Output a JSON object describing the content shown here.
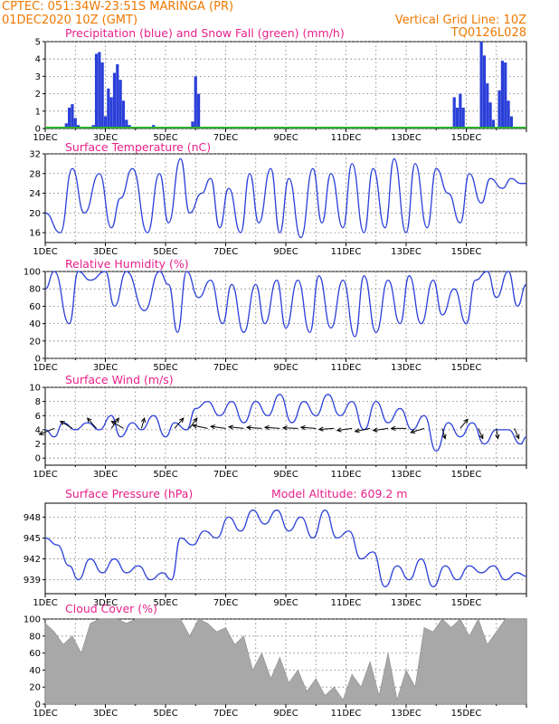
{
  "header": {
    "line1": "CPTEC:   051:34W-23:51S   MARINGA (PR)",
    "line2": "01DEC2020 10Z (GMT)",
    "grid_note": "Vertical Grid Line: 10Z",
    "code": "TQ0126L028"
  },
  "x_ticks": [
    "1DEC",
    "3DEC",
    "5DEC",
    "7DEC",
    "9DEC",
    "11DEC",
    "13DEC",
    "15DEC"
  ],
  "colors": {
    "title": "#e8208a",
    "header": "#f07800",
    "line": "#2a3fd8",
    "snow": "#2ab02a",
    "cloud": "#a8a8a8"
  },
  "chart_data": [
    {
      "type": "bar",
      "title": "Precipitation (blue) and Snow Fall (green) (mm/h)",
      "ylim": [
        0,
        5
      ],
      "yticks": [
        0,
        1,
        2,
        3,
        4,
        5
      ],
      "x_unit": "days since 01DEC 10Z",
      "series": [
        {
          "name": "Precipitation",
          "color": "#2a3fd8",
          "x": [
            0.7,
            0.8,
            0.9,
            1.0,
            1.1,
            1.6,
            1.7,
            1.8,
            1.9,
            2.0,
            2.1,
            2.2,
            2.3,
            2.4,
            2.5,
            2.6,
            2.7,
            2.8,
            3.5,
            3.6,
            3.7,
            4.9,
            5.0,
            5.1,
            6.7,
            11.1,
            11.3,
            12.4,
            12.6,
            13.6,
            13.7,
            13.8,
            13.9,
            14.5,
            14.6,
            14.7,
            14.8,
            14.9,
            15.1,
            15.2,
            15.3,
            15.4,
            15.5
          ],
          "values": [
            0.3,
            1.2,
            1.4,
            0.6,
            0.2,
            0.2,
            4.3,
            4.4,
            3.8,
            0.7,
            2.3,
            1.8,
            3.2,
            3.7,
            2.8,
            1.6,
            0.5,
            0.2,
            0.1,
            0.2,
            0.1,
            0.4,
            3.0,
            2.0,
            0.1,
            0.1,
            0.1,
            0.1,
            0.1,
            1.8,
            1.2,
            2.0,
            1.2,
            5.0,
            4.2,
            2.6,
            1.5,
            0.5,
            2.2,
            3.9,
            3.8,
            1.6,
            0.7
          ]
        },
        {
          "name": "Snow Fall",
          "color": "#2ab02a",
          "x": [],
          "values": []
        }
      ]
    },
    {
      "type": "line",
      "title": "Surface Temperature (nC)",
      "ylim": [
        14,
        32
      ],
      "yticks": [
        16,
        20,
        24,
        28,
        32
      ],
      "x": [
        0,
        0.5,
        0.9,
        1.3,
        1.8,
        2.2,
        2.5,
        2.9,
        3.4,
        3.8,
        4.1,
        4.5,
        4.8,
        5.2,
        5.5,
        5.8,
        6.1,
        6.5,
        6.8,
        7.1,
        7.5,
        7.8,
        8.1,
        8.5,
        8.9,
        9.2,
        9.5,
        9.9,
        10.2,
        10.6,
        10.9,
        11.3,
        11.6,
        12.0,
        12.3,
        12.7,
        13.0,
        13.4,
        13.8,
        14.1,
        14.5,
        14.8,
        15.2,
        15.5,
        15.8,
        16
      ],
      "values": [
        20,
        16,
        29,
        20,
        28,
        17,
        23,
        29,
        16,
        28,
        18,
        31,
        20,
        24,
        27,
        17,
        25,
        16,
        28,
        18,
        29,
        16,
        27,
        15,
        29,
        18,
        28,
        17,
        30,
        16,
        29,
        17,
        31,
        16,
        30,
        17,
        29,
        24,
        18,
        28,
        22,
        27,
        25,
        27,
        26,
        26
      ]
    },
    {
      "type": "line",
      "title": "Relative Humidity (%)",
      "ylim": [
        0,
        100
      ],
      "yticks": [
        0,
        20,
        40,
        60,
        80,
        100
      ],
      "x": [
        0,
        0.3,
        0.8,
        1.1,
        1.5,
        2.0,
        2.3,
        2.7,
        3.3,
        3.8,
        4.1,
        4.4,
        4.7,
        5.1,
        5.5,
        5.9,
        6.2,
        6.6,
        7.0,
        7.3,
        7.7,
        8.0,
        8.4,
        8.8,
        9.1,
        9.5,
        9.9,
        10.3,
        10.6,
        11.0,
        11.4,
        11.8,
        12.1,
        12.5,
        12.9,
        13.2,
        13.6,
        14.0,
        14.3,
        14.7,
        15.0,
        15.4,
        15.7,
        16
      ],
      "values": [
        80,
        100,
        40,
        100,
        90,
        100,
        60,
        100,
        55,
        100,
        85,
        30,
        100,
        70,
        90,
        40,
        85,
        30,
        85,
        40,
        90,
        35,
        90,
        30,
        95,
        35,
        90,
        25,
        95,
        30,
        90,
        40,
        95,
        40,
        90,
        50,
        80,
        40,
        90,
        100,
        70,
        100,
        60,
        85
      ]
    },
    {
      "type": "line",
      "title": "Surface Wind (m/s)",
      "ylim": [
        -1,
        10
      ],
      "yticks": [
        0,
        2,
        4,
        6,
        8,
        10
      ],
      "x": [
        0,
        0.3,
        0.6,
        1.0,
        1.4,
        1.8,
        2.2,
        2.5,
        2.9,
        3.2,
        3.6,
        4.0,
        4.3,
        4.7,
        5.0,
        5.4,
        5.8,
        6.2,
        6.6,
        7.0,
        7.4,
        7.8,
        8.2,
        8.6,
        9.0,
        9.4,
        9.8,
        10.2,
        10.6,
        11.0,
        11.4,
        11.8,
        12.2,
        12.6,
        13.0,
        13.4,
        13.8,
        14.2,
        14.6,
        15.0,
        15.4,
        15.8,
        16
      ],
      "values": [
        4,
        3,
        5,
        4,
        5,
        4,
        6,
        3,
        5,
        4,
        6,
        3,
        5,
        4,
        7,
        8,
        6,
        8,
        5,
        8,
        6,
        9,
        5,
        8,
        6,
        9,
        6,
        8,
        4,
        8,
        5,
        7,
        4,
        6,
        1,
        5,
        3,
        5,
        2,
        4,
        4,
        2,
        3
      ],
      "arrows": [
        {
          "x": 0.3,
          "dx": -1,
          "dy": -0.6
        },
        {
          "x": 0.9,
          "dx": -0.8,
          "dy": 0.7
        },
        {
          "x": 1.7,
          "dx": -0.6,
          "dy": 1
        },
        {
          "x": 2.2,
          "dx": 0.5,
          "dy": 1
        },
        {
          "x": 2.6,
          "dx": -0.8,
          "dy": 0.7
        },
        {
          "x": 3.2,
          "dx": 0.2,
          "dy": 1
        },
        {
          "x": 4.3,
          "dx": 0.6,
          "dy": 1
        },
        {
          "x": 4.8,
          "dx": 0.5,
          "dy": 1
        },
        {
          "x": 5.4,
          "dx": -1,
          "dy": 0.3
        },
        {
          "x": 6.0,
          "dx": -1,
          "dy": 0.2
        },
        {
          "x": 6.6,
          "dx": -1,
          "dy": 0.15
        },
        {
          "x": 7.2,
          "dx": -1,
          "dy": 0.1
        },
        {
          "x": 7.8,
          "dx": -1,
          "dy": 0.1
        },
        {
          "x": 8.4,
          "dx": -1,
          "dy": 0.05
        },
        {
          "x": 9.0,
          "dx": -1,
          "dy": 0.1
        },
        {
          "x": 9.6,
          "dx": -1,
          "dy": -0.1
        },
        {
          "x": 10.2,
          "dx": -1,
          "dy": -0.2
        },
        {
          "x": 10.8,
          "dx": -1,
          "dy": -0.3
        },
        {
          "x": 11.4,
          "dx": -1,
          "dy": -0.2
        },
        {
          "x": 12.0,
          "dx": -1,
          "dy": 0
        },
        {
          "x": 12.6,
          "dx": -0.9,
          "dy": -0.4
        },
        {
          "x": 13.2,
          "dx": 0.2,
          "dy": -1
        },
        {
          "x": 13.8,
          "dx": 0.5,
          "dy": 0.9
        },
        {
          "x": 14.4,
          "dx": 0.3,
          "dy": -1
        },
        {
          "x": 15.0,
          "dx": 0.1,
          "dy": -1
        },
        {
          "x": 15.6,
          "dx": 0.3,
          "dy": -1
        }
      ]
    },
    {
      "type": "line",
      "title": "Surface Pressure (hPa)",
      "annotation": "Model Altitude: 609.2 m",
      "ylim": [
        937,
        950
      ],
      "yticks": [
        939,
        942,
        945,
        948
      ],
      "x": [
        0,
        0.4,
        0.8,
        1.1,
        1.5,
        1.9,
        2.3,
        2.7,
        3.1,
        3.5,
        3.9,
        4.2,
        4.5,
        4.9,
        5.3,
        5.7,
        6.1,
        6.5,
        6.9,
        7.3,
        7.7,
        8.1,
        8.5,
        8.9,
        9.3,
        9.7,
        10.1,
        10.5,
        10.9,
        11.3,
        11.7,
        12.1,
        12.5,
        12.9,
        13.3,
        13.7,
        14.1,
        14.5,
        14.9,
        15.3,
        15.7,
        16
      ],
      "values": [
        945,
        944,
        941,
        939,
        942,
        940,
        942,
        940,
        941,
        939,
        940,
        939,
        945,
        944,
        946,
        945,
        948,
        946,
        949,
        947,
        949,
        946,
        948,
        945,
        949,
        945,
        946,
        942,
        943,
        938,
        941,
        939,
        942,
        938,
        941,
        939,
        941,
        940,
        941,
        939,
        940,
        939.5
      ]
    },
    {
      "type": "area",
      "title": "Cloud Cover (%)",
      "ylim": [
        0,
        100
      ],
      "yticks": [
        0,
        20,
        40,
        60,
        80,
        100
      ],
      "x": [
        0,
        0.3,
        0.6,
        0.9,
        1.2,
        1.5,
        1.8,
        2.1,
        2.4,
        2.7,
        3.0,
        3.3,
        3.6,
        3.9,
        4.2,
        4.5,
        4.8,
        5.1,
        5.4,
        5.7,
        6.0,
        6.3,
        6.6,
        6.9,
        7.2,
        7.5,
        7.8,
        8.1,
        8.4,
        8.7,
        9.0,
        9.3,
        9.6,
        9.9,
        10.2,
        10.5,
        10.8,
        11.1,
        11.4,
        11.7,
        12.0,
        12.3,
        12.6,
        12.9,
        13.2,
        13.5,
        13.8,
        14.1,
        14.4,
        14.7,
        15.0,
        15.3,
        15.6,
        16
      ],
      "values": [
        95,
        85,
        70,
        80,
        60,
        95,
        100,
        100,
        100,
        95,
        100,
        100,
        100,
        100,
        100,
        100,
        80,
        100,
        95,
        85,
        90,
        70,
        80,
        40,
        60,
        30,
        55,
        25,
        40,
        15,
        30,
        10,
        20,
        5,
        35,
        20,
        50,
        10,
        60,
        5,
        40,
        20,
        90,
        85,
        100,
        90,
        100,
        80,
        100,
        70,
        85,
        100,
        100,
        100
      ]
    }
  ]
}
